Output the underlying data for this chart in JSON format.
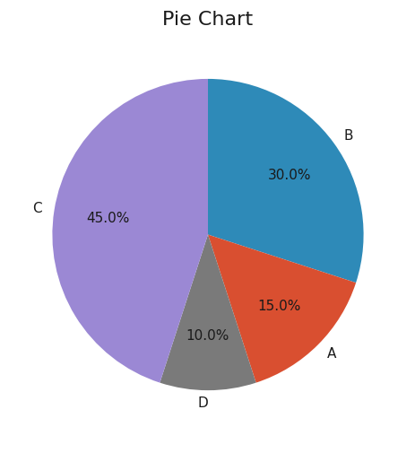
{
  "title": "Pie Chart",
  "labels": [
    "B",
    "A",
    "D",
    "C"
  ],
  "sizes": [
    30.0,
    15.0,
    10.0,
    45.0
  ],
  "colors": [
    "#2e8ab8",
    "#d94f30",
    "#7a7a7a",
    "#9b88d4"
  ],
  "startangle": 90,
  "counterclock": false,
  "title_fontsize": 16,
  "label_fontsize": 11,
  "pct_fontsize": 11,
  "background_color": "#ffffff"
}
